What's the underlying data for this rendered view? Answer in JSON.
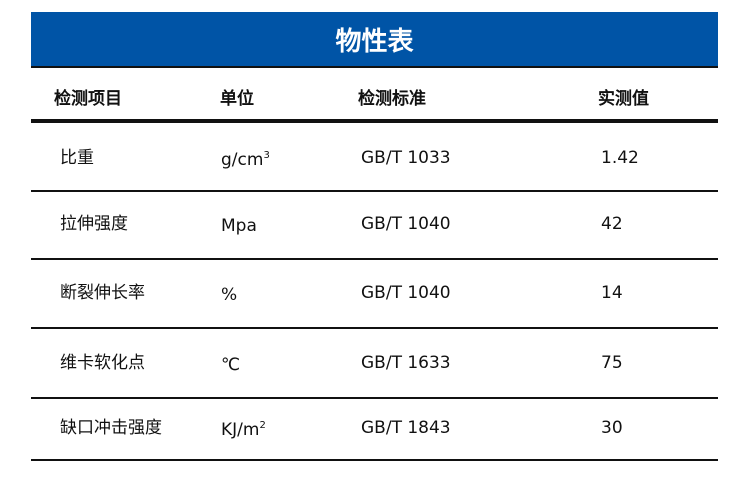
{
  "title": "物性表",
  "headers": [
    "检测项目",
    "单位",
    "检测标准",
    "实测值"
  ],
  "rows": [
    {
      "item": "比重",
      "unit": "g/cm",
      "unit_sup": "3",
      "standard": "GB/T 1033",
      "value": "1.42"
    },
    {
      "item": "拉伸强度",
      "unit": "Mpa",
      "unit_sup": "",
      "standard": "GB/T 1040",
      "value": "42"
    },
    {
      "item": "断裂伸长率",
      "unit": "%",
      "unit_sup": "",
      "standard": "GB/T 1040",
      "value": "14"
    },
    {
      "item": "维卡软化点",
      "unit": "℃",
      "unit_sup": "",
      "standard": "GB/T 1633",
      "value": "75"
    },
    {
      "item": "缺口冲击强度",
      "unit": "KJ/m",
      "unit_sup": "2",
      "standard": "GB/T 1843",
      "value": "30"
    }
  ],
  "colors": {
    "banner": "#0054a6"
  }
}
